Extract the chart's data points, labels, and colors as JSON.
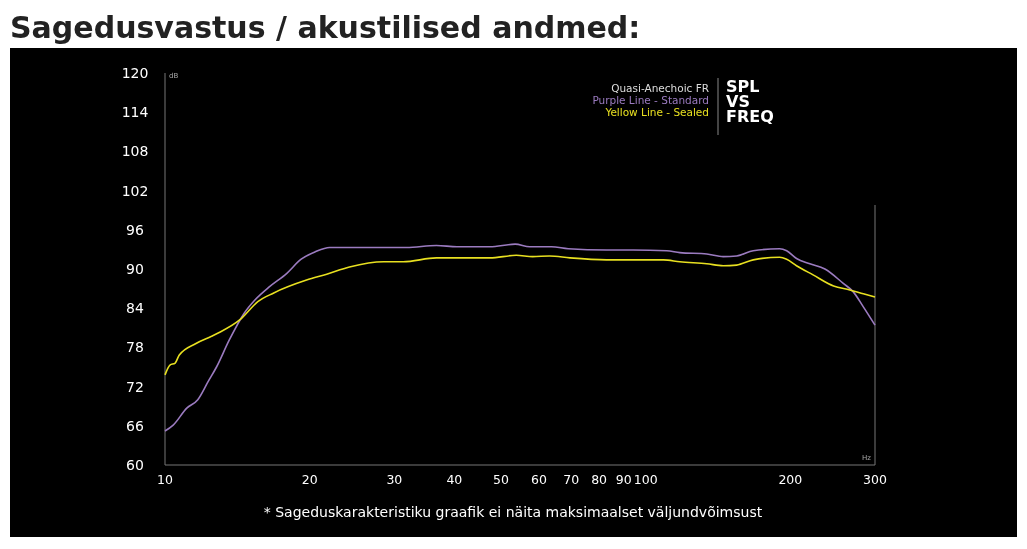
{
  "chart_data": {
    "type": "line",
    "title": "Sagedusvastus / akustilised andmed:",
    "subtitle": "SPL\nVS\nFREQ",
    "legend_title": "Quasi-Anechoic FR",
    "xlabel": "Hz",
    "ylabel": "dB",
    "annotations": [
      "* Sageduskarakteristiku graafik ei näita maksimaalset väljundvõimsust"
    ],
    "log": "x",
    "xlim": [
      10,
      300
    ],
    "ylim": [
      60,
      120
    ],
    "xticks": [
      10,
      20,
      30,
      40,
      50,
      60,
      70,
      80,
      90,
      100,
      200,
      300
    ],
    "yticks": [
      60,
      66,
      72,
      78,
      84,
      90,
      96,
      102,
      108,
      114,
      120
    ],
    "grid": false,
    "legend": "top right",
    "marker": "none",
    "line_style": "solid",
    "series": [
      {
        "name": "Purple Line - Standard",
        "color": "#9b7bc0",
        "x": [
          10,
          10.4,
          11.1,
          11.7,
          12.3,
          12.8,
          13.6,
          14.6,
          15.4,
          16.5,
          17.9,
          19.2,
          20.5,
          22,
          25.9,
          31.8,
          36.7,
          40.5,
          47.4,
          53.5,
          57.4,
          63.7,
          69,
          82.9,
          94.2,
          110.6,
          117.8,
          134,
          145,
          154.6,
          167.4,
          190,
          196.5,
          206,
          219.6,
          236,
          257.7,
          270.4,
          283.7,
          300
        ],
        "values": [
          65.2,
          66.1,
          68.7,
          70,
          72.8,
          75,
          79.1,
          83.2,
          85.3,
          87.3,
          89.3,
          91.5,
          92.6,
          93.3,
          93.3,
          93.3,
          93.6,
          93.4,
          93.4,
          93.8,
          93.4,
          93.4,
          93.1,
          92.9,
          92.9,
          92.8,
          92.5,
          92.3,
          91.9,
          92,
          92.8,
          93.1,
          92.8,
          91.6,
          90.8,
          90,
          87.8,
          86.5,
          84.2,
          81.4
        ]
      },
      {
        "name": "Yellow Line - Sealed",
        "color": "#e8e020",
        "x": [
          10,
          10.24,
          10.5,
          10.7,
          11.6,
          12.5,
          12.9,
          14.3,
          15.6,
          16.8,
          19.7,
          21.7,
          24.2,
          28.5,
          31.3,
          36.7,
          47.4,
          53.8,
          58.2,
          63.1,
          69.6,
          82.9,
          108.9,
          117.8,
          134,
          145,
          154.6,
          167.4,
          190,
          196.5,
          206,
          223,
          246,
          266,
          283.7,
          300
        ],
        "values": [
          73.8,
          75.3,
          75.6,
          76.8,
          78.6,
          79.7,
          80.2,
          82.2,
          85,
          86.3,
          88.3,
          89.2,
          90.3,
          91.1,
          91.1,
          91.7,
          91.7,
          92.1,
          91.9,
          92,
          91.7,
          91.4,
          91.4,
          91.1,
          90.8,
          90.5,
          90.6,
          91.4,
          91.8,
          91.5,
          90.5,
          89.1,
          87.4,
          86.8,
          86.2,
          85.7
        ]
      }
    ]
  }
}
